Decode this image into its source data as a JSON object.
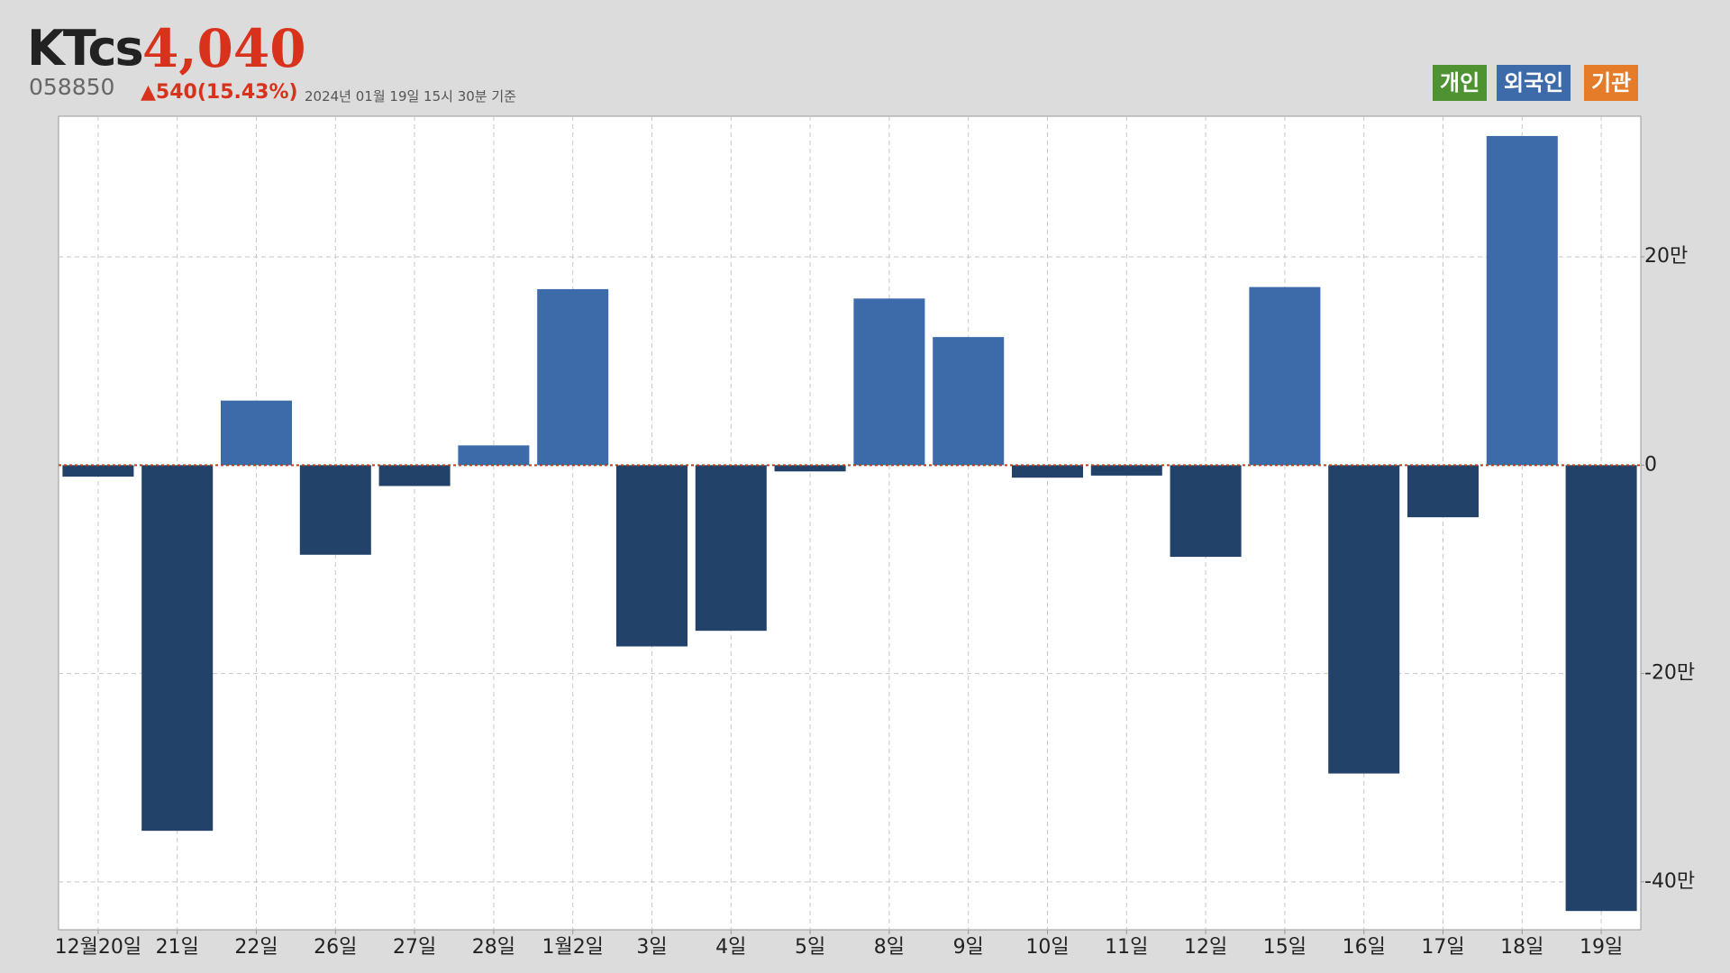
{
  "header": {
    "name": "KTcs",
    "price": "4,040",
    "code": "058850",
    "change": "▲540(15.43%)",
    "timestamp": "2024년 01월 19일 15시 30분 기준",
    "buttons": [
      "개인",
      "외국인",
      "기관"
    ]
  },
  "chart_data": {
    "type": "bar",
    "categories": [
      "12월20일",
      "21일",
      "22일",
      "26일",
      "27일",
      "28일",
      "1월2일",
      "3일",
      "4일",
      "5일",
      "8일",
      "9일",
      "10일",
      "11일",
      "12일",
      "15일",
      "16일",
      "17일",
      "18일",
      "19일"
    ],
    "values": [
      -1.1,
      -35.1,
      6.2,
      -8.6,
      -2.0,
      1.9,
      16.9,
      -17.4,
      -15.9,
      -0.6,
      16.0,
      12.3,
      -1.2,
      -1.0,
      -8.8,
      17.1,
      -29.6,
      -5.0,
      31.6,
      -42.8
    ],
    "positive_color": "#3d6aa9",
    "negative_color": "#22426a",
    "ylim": [
      -44.6,
      33.5
    ],
    "yticks": [
      {
        "value": -40,
        "label": "-40만"
      },
      {
        "value": -20,
        "label": "-20만"
      },
      0,
      {
        "value": 20,
        "label": "20만"
      }
    ],
    "grid": true
  }
}
